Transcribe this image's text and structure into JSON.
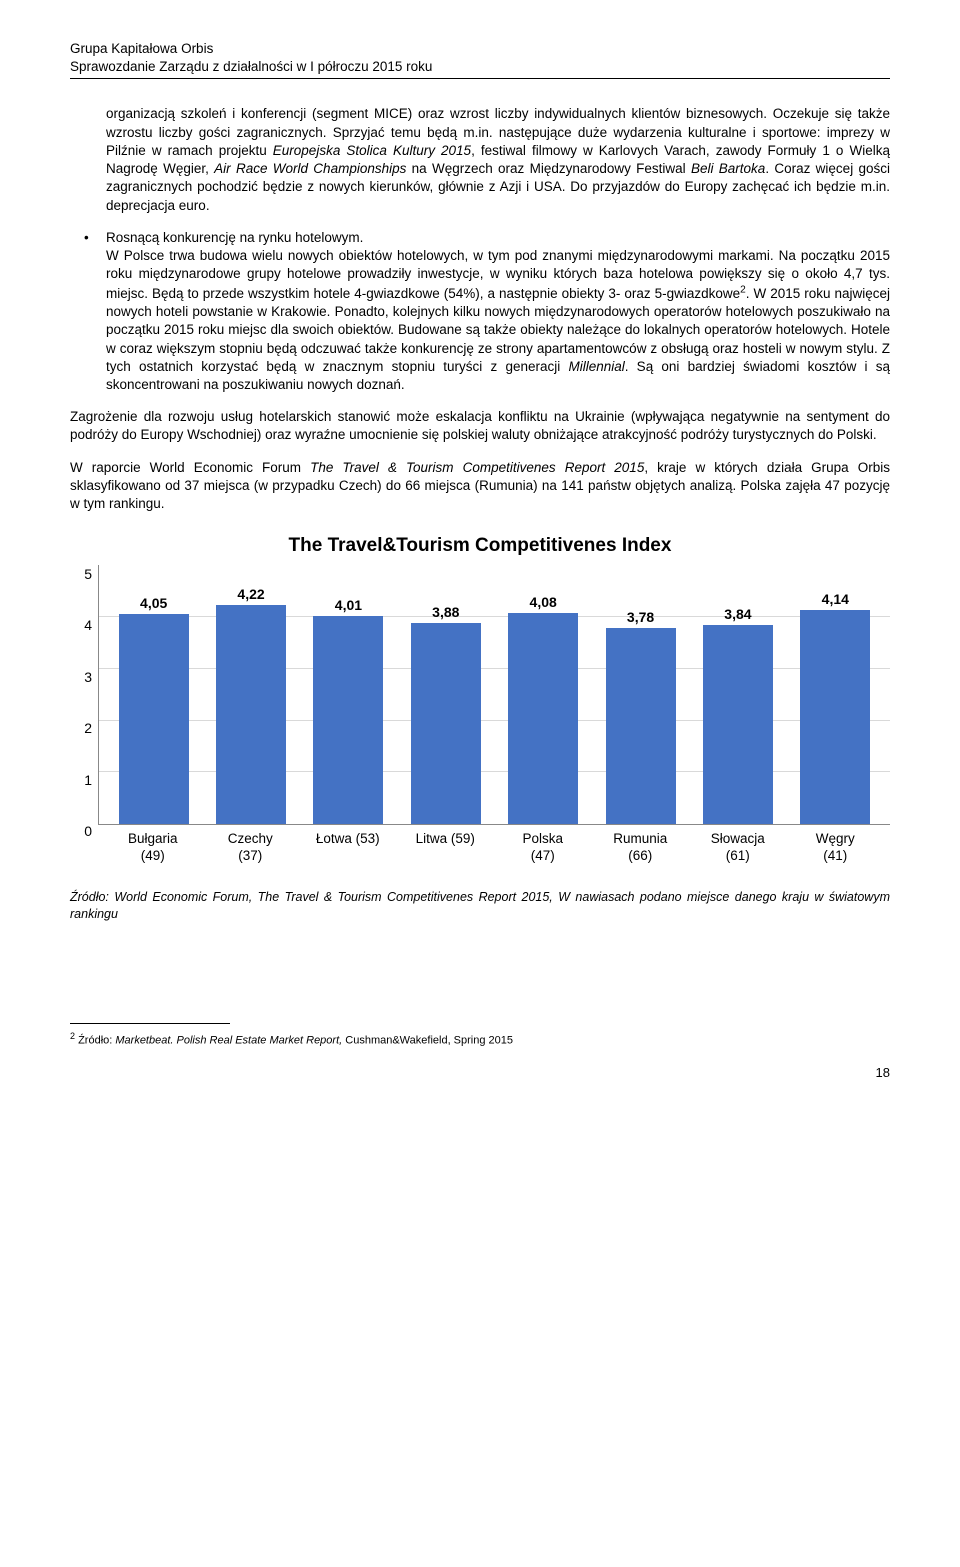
{
  "header": {
    "line1": "Grupa Kapitałowa Orbis",
    "line2": "Sprawozdanie Zarządu z działalności w I półroczu 2015 roku"
  },
  "bullet1": {
    "p1_a": "organizacją szkoleń i konferencji (segment MICE) oraz wzrost liczby indywidualnych klientów biznesowych. Oczekuje się także wzrostu liczby gości zagranicznych. Sprzyjać temu będą m.in. następujące duże wydarzenia kulturalne i sportowe: imprezy w Pilźnie w ramach projektu ",
    "p1_i1": "Europejska Stolica Kultury 2015",
    "p1_b": ", festiwal filmowy w Karlovych Varach, zawody Formuły 1 o Wielką Nagrodę Węgier, ",
    "p1_i2": "Air Race World Championships",
    "p1_c": " na Węgrzech oraz Międzynarodowy Festiwal ",
    "p1_i3": "Beli Bartoka",
    "p1_d": ". Coraz więcej gości zagranicznych pochodzić będzie z nowych kierunków, głównie z Azji i USA. Do przyjazdów do Europy zachęcać ich będzie m.in. deprecjacja euro."
  },
  "bullet2": {
    "lead": "Rosnącą konkurencję na rynku hotelowym.",
    "body_a": "W Polsce trwa budowa wielu nowych obiektów hotelowych, w tym pod znanymi międzynarodowymi markami. Na początku 2015 roku międzynarodowe grupy hotelowe prowadziły inwestycje, w wyniku których baza hotelowa powiększy się o około 4,7 tys. miejsc. Będą to przede wszystkim hotele 4-gwiazdkowe (54%), a następnie obiekty 3- oraz 5-gwiazdkowe",
    "body_b": ". W 2015 roku najwięcej nowych hoteli powstanie w Krakowie. Ponadto, kolejnych kilku nowych międzynarodowych operatorów hotelowych poszukiwało na początku 2015 roku miejsc dla swoich obiektów. Budowane są także obiekty należące do lokalnych operatorów hotelowych. Hotele w coraz większym stopniu będą odczuwać także konkurencję ze strony apartamentowców z obsługą oraz hosteli w nowym stylu. Z tych ostatnich korzystać będą w znacznym stopniu turyści z generacji ",
    "body_i": "Millennial",
    "body_c": ". Są oni bardziej świadomi kosztów i są skoncentrowani na poszukiwaniu nowych doznań.",
    "fn_marker": "2"
  },
  "para3": "Zagrożenie dla rozwoju usług hotelarskich stanowić może eskalacja konfliktu na Ukrainie (wpływająca negatywnie na sentyment do podróży do Europy Wschodniej) oraz wyraźne umocnienie się polskiej waluty obniżające atrakcyjność podróży turystycznych do Polski.",
  "para4": {
    "a": "W raporcie World Economic Forum ",
    "i": "The Travel & Tourism Competitivenes Report 2015",
    "b": ", kraje w których działa Grupa Orbis sklasyfikowano od 37 miejsca (w przypadku Czech) do 66 miejsca (Rumunia) na 141 państw objętych analizą. Polska zajęła 47 pozycję w tym rankingu."
  },
  "chart": {
    "title": "The Travel&Tourism Competitivenes Index",
    "type": "bar",
    "ylim": [
      0,
      5
    ],
    "ytick_step": 1,
    "yticks": [
      "5",
      "4",
      "3",
      "2",
      "1",
      "0"
    ],
    "grid_color": "#d9d9d9",
    "axis_color": "#888888",
    "bar_color": "#4472c4",
    "label_color": "#000000",
    "label_fontsize": 14,
    "bar_width": 0.72,
    "categories": [
      {
        "l1": "Bułgaria",
        "l2": "(49)"
      },
      {
        "l1": "Czechy",
        "l2": "(37)"
      },
      {
        "l1": "Łotwa (53)",
        "l2": ""
      },
      {
        "l1": "Litwa (59)",
        "l2": ""
      },
      {
        "l1": "Polska",
        "l2": "(47)"
      },
      {
        "l1": "Rumunia",
        "l2": "(66)"
      },
      {
        "l1": "Słowacja",
        "l2": "(61)"
      },
      {
        "l1": "Węgry",
        "l2": "(41)"
      }
    ],
    "values": [
      4.05,
      4.22,
      4.01,
      3.88,
      4.08,
      3.78,
      3.84,
      4.14
    ],
    "value_labels": [
      "4,05",
      "4,22",
      "4,01",
      "3,88",
      "4,08",
      "3,78",
      "3,84",
      "4,14"
    ]
  },
  "source": "Źródło: World Economic Forum, The Travel & Tourism Competitivenes Report 2015, W nawiasach podano miejsce danego kraju w światowym rankingu",
  "footnote": {
    "marker": "2",
    "a": " Źródło: ",
    "i": "Marketbeat. Polish Real Estate Market Report,",
    "b": " Cushman&Wakefield, Spring 2015"
  },
  "page_number": "18"
}
